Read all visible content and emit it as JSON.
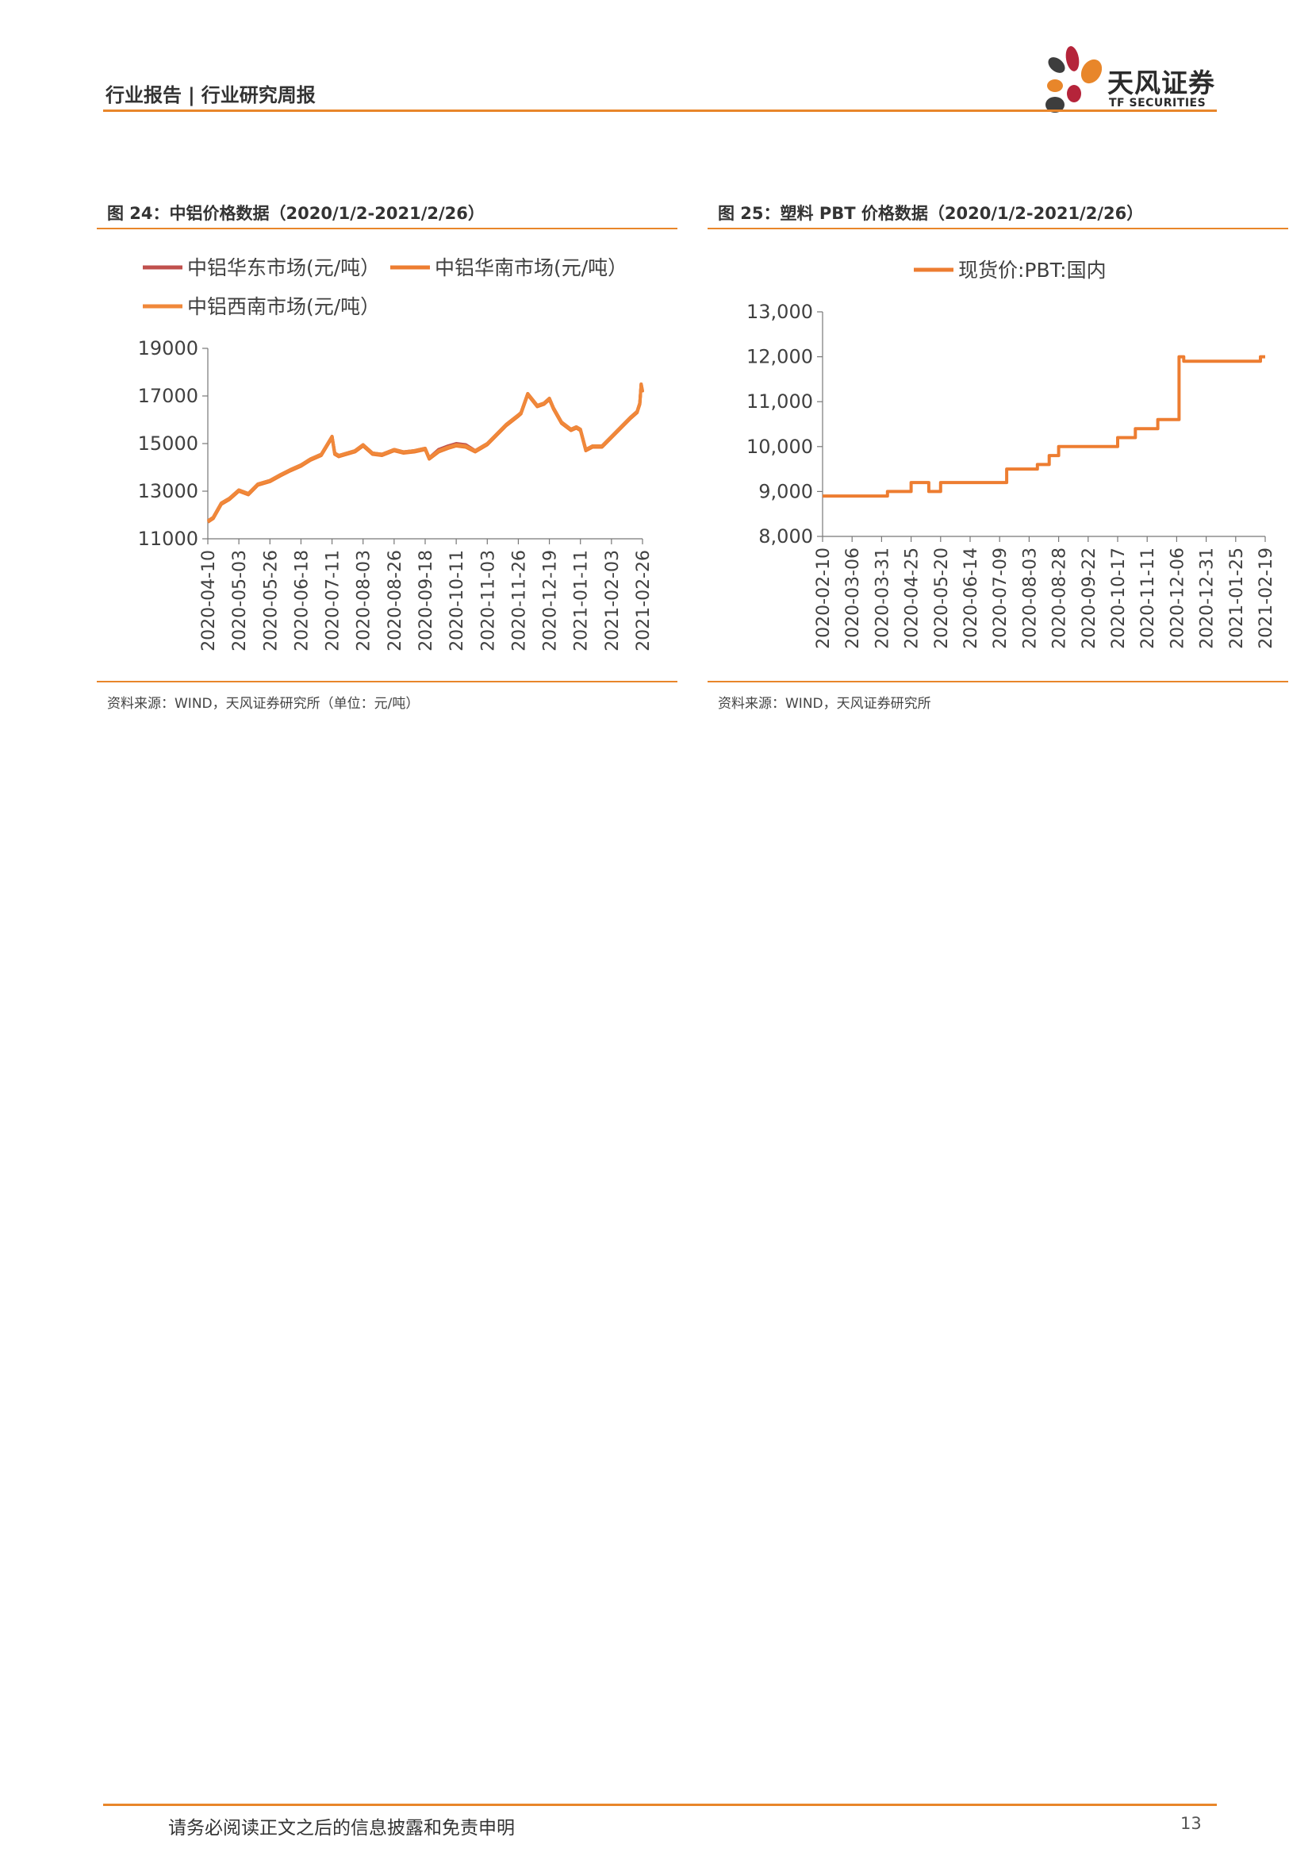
{
  "header": {
    "category": "行业报告",
    "separator": "|",
    "subcategory": "行业研究周报",
    "brand_cn": "天风证券",
    "brand_en": "TF SECURITIES"
  },
  "colors": {
    "accent": "#E8862A",
    "series_east": "#C0504D",
    "series_south": "#ED7D31",
    "series_southwest": "#F0883A"
  },
  "figures": [
    {
      "title": "图 24：中铝价格数据（2020/1/2-2021/2/26）",
      "source": "资料来源：WIND，天风证券研究所（单位：元/吨）"
    },
    {
      "title": "图 25：塑料 PBT 价格数据（2020/1/2-2021/2/26）",
      "source": "资料来源：WIND，天风证券研究所"
    }
  ],
  "chart_data": [
    {
      "type": "line",
      "legend": [
        "中铝华东市场(元/吨）",
        "中铝华南市场(元/吨）",
        "中铝西南市场(元/吨）"
      ],
      "legend_placement": "top",
      "ylim": [
        11000,
        19000
      ],
      "yticks": [
        "19000",
        "17000",
        "15000",
        "13000",
        "11000"
      ],
      "ytick_values": [
        19000,
        17000,
        15000,
        13000,
        11000
      ],
      "xticks": [
        "2020-04-10",
        "2020-05-03",
        "2020-05-26",
        "2020-06-18",
        "2020-07-11",
        "2020-08-03",
        "2020-08-26",
        "2020-09-18",
        "2020-10-11",
        "2020-11-03",
        "2020-11-26",
        "2020-12-19",
        "2021-01-11",
        "2021-02-03",
        "2021-02-26"
      ],
      "series": [
        {
          "name": "中铝华东市场(元/吨）",
          "x": [
            "2020-04-10",
            "2020-04-14",
            "2020-04-20",
            "2020-04-26",
            "2020-05-03",
            "2020-05-10",
            "2020-05-17",
            "2020-05-26",
            "2020-06-03",
            "2020-06-10",
            "2020-06-18",
            "2020-06-25",
            "2020-07-03",
            "2020-07-11",
            "2020-07-13",
            "2020-07-16",
            "2020-07-22",
            "2020-07-28",
            "2020-08-03",
            "2020-08-10",
            "2020-08-17",
            "2020-08-26",
            "2020-09-02",
            "2020-09-10",
            "2020-09-18",
            "2020-09-21",
            "2020-09-28",
            "2020-10-05",
            "2020-10-11",
            "2020-10-18",
            "2020-10-25",
            "2020-11-03",
            "2020-11-10",
            "2020-11-17",
            "2020-11-26",
            "2020-11-28",
            "2020-12-03",
            "2020-12-10",
            "2020-12-15",
            "2020-12-19",
            "2020-12-22",
            "2020-12-28",
            "2021-01-04",
            "2021-01-08",
            "2021-01-11",
            "2021-01-15",
            "2021-01-20",
            "2021-01-27",
            "2021-02-03",
            "2021-02-10",
            "2021-02-17",
            "2021-02-22",
            "2021-02-24",
            "2021-02-25",
            "2021-02-26"
          ],
          "values": [
            11750,
            11900,
            12500,
            12700,
            13050,
            12900,
            13300,
            13450,
            13700,
            13900,
            14100,
            14350,
            14550,
            15300,
            14600,
            14500,
            14600,
            14700,
            14950,
            14600,
            14550,
            14750,
            14650,
            14700,
            14800,
            14400,
            14750,
            14900,
            15000,
            14950,
            14700,
            15000,
            15400,
            15800,
            16200,
            16300,
            17100,
            16600,
            16700,
            16900,
            16500,
            15900,
            15600,
            15700,
            15600,
            14750,
            14900,
            14900,
            15300,
            15700,
            16100,
            16350,
            16700,
            17500,
            17200
          ]
        },
        {
          "name": "中铝华南市场(元/吨）",
          "x": [
            "2020-04-10",
            "2020-04-14",
            "2020-04-20",
            "2020-04-26",
            "2020-05-03",
            "2020-05-10",
            "2020-05-17",
            "2020-05-26",
            "2020-06-03",
            "2020-06-10",
            "2020-06-18",
            "2020-06-25",
            "2020-07-03",
            "2020-07-11",
            "2020-07-13",
            "2020-07-16",
            "2020-07-22",
            "2020-07-28",
            "2020-08-03",
            "2020-08-10",
            "2020-08-17",
            "2020-08-26",
            "2020-09-02",
            "2020-09-10",
            "2020-09-18",
            "2020-09-21",
            "2020-09-28",
            "2020-10-05",
            "2020-10-11",
            "2020-10-18",
            "2020-10-25",
            "2020-11-03",
            "2020-11-10",
            "2020-11-17",
            "2020-11-26",
            "2020-11-28",
            "2020-12-03",
            "2020-12-10",
            "2020-12-15",
            "2020-12-19",
            "2020-12-22",
            "2020-12-28",
            "2021-01-04",
            "2021-01-08",
            "2021-01-11",
            "2021-01-15",
            "2021-01-20",
            "2021-01-27",
            "2021-02-03",
            "2021-02-10",
            "2021-02-17",
            "2021-02-22",
            "2021-02-24",
            "2021-02-25",
            "2021-02-26"
          ],
          "values": [
            11700,
            11850,
            12450,
            12650,
            13000,
            12850,
            13250,
            13400,
            13650,
            13850,
            14050,
            14300,
            14500,
            15250,
            14550,
            14450,
            14550,
            14650,
            14900,
            14550,
            14500,
            14700,
            14600,
            14650,
            14750,
            14350,
            14650,
            14800,
            14900,
            14850,
            14650,
            14950,
            15350,
            15750,
            16150,
            16250,
            17050,
            16550,
            16650,
            16850,
            16450,
            15850,
            15550,
            15650,
            15550,
            14700,
            14850,
            14850,
            15250,
            15650,
            16050,
            16300,
            16650,
            17450,
            17150
          ]
        },
        {
          "name": "中铝西南市场(元/吨）",
          "x": [
            "2020-04-10",
            "2020-04-14",
            "2020-04-20",
            "2020-04-26",
            "2020-05-03",
            "2020-05-10",
            "2020-05-17",
            "2020-05-26",
            "2020-06-03",
            "2020-06-10",
            "2020-06-18",
            "2020-06-25",
            "2020-07-03",
            "2020-07-11",
            "2020-07-13",
            "2020-07-16",
            "2020-07-22",
            "2020-07-28",
            "2020-08-03",
            "2020-08-10",
            "2020-08-17",
            "2020-08-26",
            "2020-09-02",
            "2020-09-10",
            "2020-09-18",
            "2020-09-21",
            "2020-09-28",
            "2020-10-05",
            "2020-10-11",
            "2020-10-18",
            "2020-10-25",
            "2020-11-03",
            "2020-11-10",
            "2020-11-17",
            "2020-11-26",
            "2020-11-28",
            "2020-12-03",
            "2020-12-10",
            "2020-12-15",
            "2020-12-19",
            "2020-12-22",
            "2020-12-28",
            "2021-01-04",
            "2021-01-08",
            "2021-01-11",
            "2021-01-15",
            "2021-01-20",
            "2021-01-27",
            "2021-02-03",
            "2021-02-10",
            "2021-02-17",
            "2021-02-22",
            "2021-02-24",
            "2021-02-25",
            "2021-02-26"
          ],
          "values": [
            11750,
            11900,
            12500,
            12700,
            13050,
            12900,
            13300,
            13450,
            13700,
            13900,
            14100,
            14350,
            14550,
            15300,
            14600,
            14500,
            14600,
            14700,
            14950,
            14600,
            14550,
            14750,
            14650,
            14700,
            14800,
            14400,
            14700,
            14850,
            14950,
            14900,
            14700,
            15000,
            15400,
            15800,
            16200,
            16300,
            17100,
            16600,
            16700,
            16900,
            16500,
            15900,
            15600,
            15700,
            15600,
            14750,
            14900,
            14900,
            15300,
            15700,
            16100,
            16350,
            16700,
            17500,
            17200
          ]
        }
      ]
    },
    {
      "type": "line",
      "legend": [
        "现货价:PBT:国内"
      ],
      "legend_placement": "top",
      "ylim": [
        8000,
        13000
      ],
      "yticks": [
        "13,000",
        "12,000",
        "11,000",
        "10,000",
        "9,000",
        "8,000"
      ],
      "ytick_values": [
        13000,
        12000,
        11000,
        10000,
        9000,
        8000
      ],
      "xticks": [
        "2020-02-10",
        "2020-03-06",
        "2020-03-31",
        "2020-04-25",
        "2020-05-20",
        "2020-06-14",
        "2020-07-09",
        "2020-08-03",
        "2020-08-28",
        "2020-09-22",
        "2020-10-17",
        "2020-11-11",
        "2020-12-06",
        "2020-12-31",
        "2021-01-25",
        "2021-02-19"
      ],
      "series": [
        {
          "name": "现货价:PBT:国内",
          "step": true,
          "x": [
            "2020-02-10",
            "2020-04-05",
            "2020-04-25",
            "2020-05-10",
            "2020-05-20",
            "2020-07-15",
            "2020-08-10",
            "2020-08-20",
            "2020-08-28",
            "2020-10-17",
            "2020-11-01",
            "2020-11-20",
            "2020-12-08",
            "2020-12-12",
            "2021-02-15",
            "2021-02-19"
          ],
          "values": [
            8900,
            9000,
            9200,
            9000,
            9200,
            9500,
            9600,
            9800,
            10000,
            10200,
            10400,
            10600,
            12000,
            11900,
            12000,
            12000
          ]
        }
      ]
    }
  ],
  "footer": {
    "disclaimer": "请务必阅读正文之后的信息披露和免责申明",
    "page_number": "13"
  }
}
